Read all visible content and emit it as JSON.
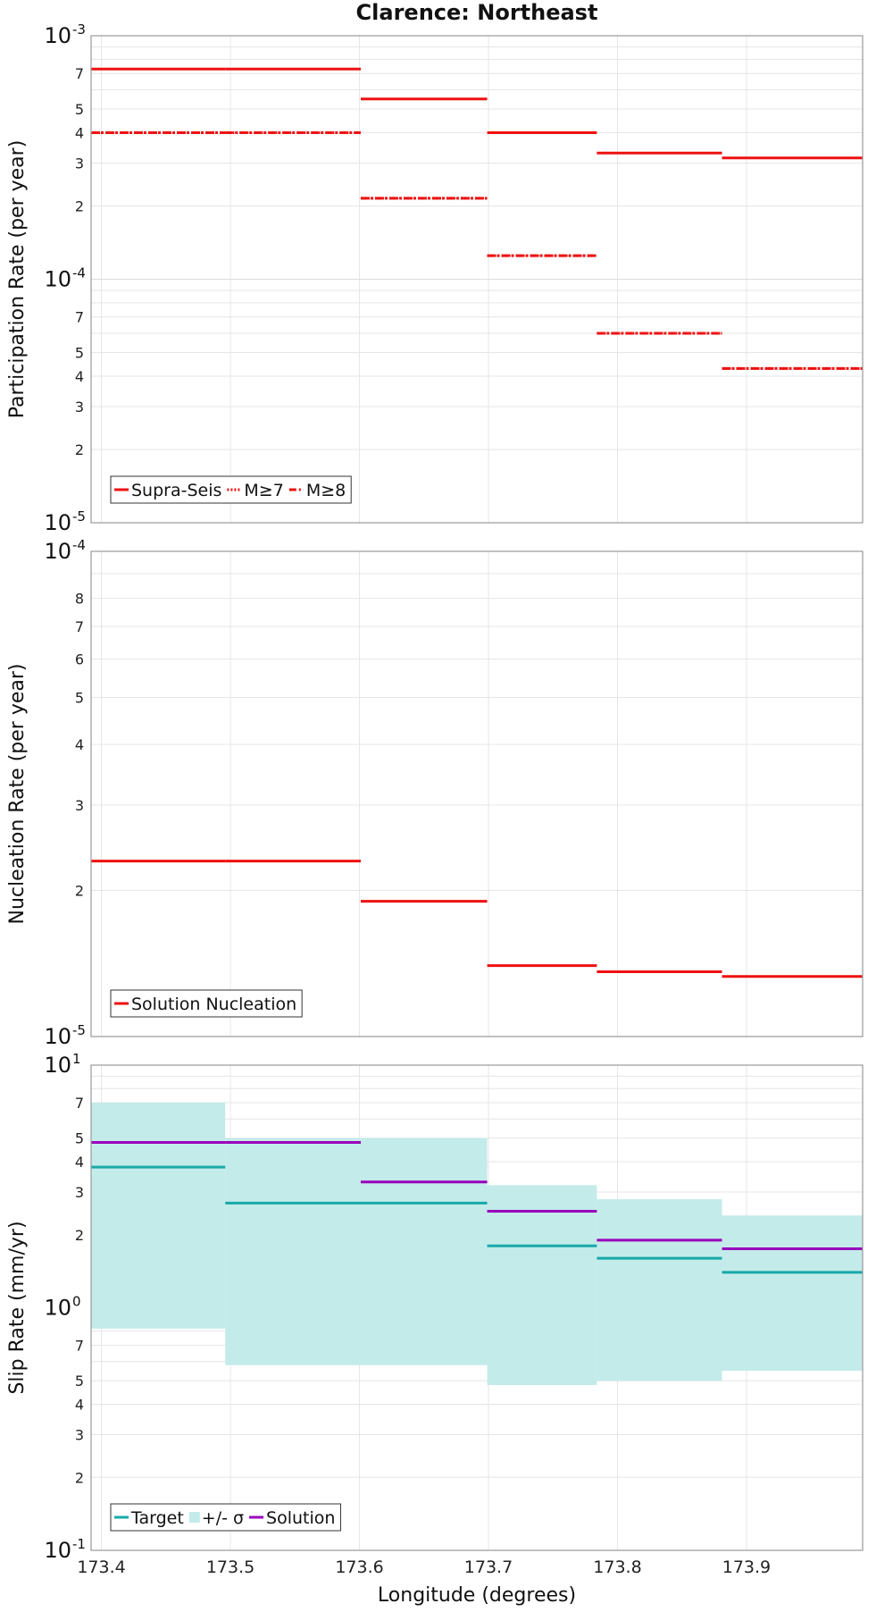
{
  "title": "Clarence: Northeast",
  "xlabel": "Longitude (degrees)",
  "x_ticks": [
    "173.4",
    "173.5",
    "173.6",
    "173.7",
    "173.8",
    "173.9"
  ],
  "colors": {
    "red": "#ee1111",
    "teal": "#17a9a9",
    "band": "#c3ebea",
    "purple": "#9900bb"
  },
  "chart_data": [
    {
      "type": "line",
      "ylabel": "Participation Rate (per year)",
      "y_scale": "log",
      "ylim": [
        1e-05,
        0.001
      ],
      "xlim": [
        173.392,
        173.99
      ],
      "grid": true,
      "legend": {
        "placement": "bottom-left",
        "items": [
          "Supra-Seis",
          "M≥7",
          "M≥8"
        ]
      },
      "x_breaks": [
        173.392,
        173.496,
        173.601,
        173.699,
        173.784,
        173.881,
        173.99
      ],
      "series": [
        {
          "name": "Supra-Seis",
          "style": "solid",
          "values": [
            0.00073,
            0.00073,
            0.00055,
            0.0004,
            0.00033,
            0.000315
          ]
        },
        {
          "name": "M≥7",
          "style": "dotted",
          "values": [
            0.0004,
            0.0004,
            0.000215,
            0.000125,
            6e-05,
            4.3e-05
          ]
        },
        {
          "name": "M≥8",
          "style": "dashdot",
          "values": [
            0.0004,
            0.0004,
            0.000215,
            0.000125,
            6e-05,
            4.3e-05
          ]
        }
      ]
    },
    {
      "type": "line",
      "ylabel": "Nucleation Rate (per year)",
      "y_scale": "log",
      "ylim": [
        1e-05,
        0.0001
      ],
      "xlim": [
        173.392,
        173.99
      ],
      "grid": true,
      "legend": {
        "placement": "bottom-left",
        "items": [
          "Solution Nucleation"
        ]
      },
      "x_breaks": [
        173.392,
        173.496,
        173.601,
        173.699,
        173.784,
        173.881,
        173.99
      ],
      "series": [
        {
          "name": "Solution Nucleation",
          "style": "solid",
          "values": [
            2.3e-05,
            2.3e-05,
            1.9e-05,
            1.4e-05,
            1.36e-05,
            1.33e-05
          ]
        }
      ]
    },
    {
      "type": "area",
      "ylabel": "Slip Rate (mm/yr)",
      "y_scale": "log",
      "ylim": [
        0.1,
        10
      ],
      "xlim": [
        173.392,
        173.99
      ],
      "grid": true,
      "legend": {
        "placement": "bottom-left",
        "items": [
          "Target",
          "+/- σ",
          "Solution"
        ]
      },
      "x_breaks": [
        173.392,
        173.496,
        173.601,
        173.699,
        173.784,
        173.881,
        173.99
      ],
      "band_breaks": [
        173.392,
        173.496,
        173.699,
        173.784,
        173.881,
        173.99
      ],
      "band_upper": [
        7.0,
        5.0,
        3.2,
        2.8,
        2.4
      ],
      "band_lower": [
        0.82,
        0.58,
        0.48,
        0.5,
        0.55
      ],
      "series": [
        {
          "name": "Target",
          "values": [
            3.8,
            2.7,
            2.7,
            1.8,
            1.6,
            1.4
          ]
        },
        {
          "name": "Solution",
          "values": [
            4.8,
            4.8,
            3.3,
            2.5,
            1.9,
            1.75
          ]
        }
      ]
    }
  ]
}
